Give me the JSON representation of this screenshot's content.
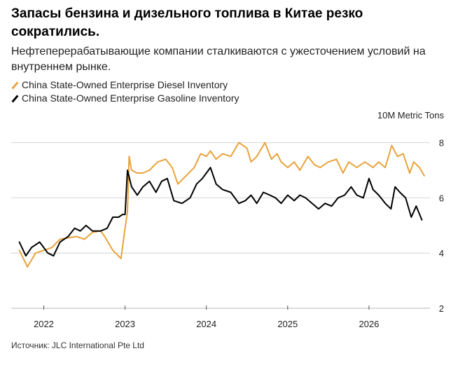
{
  "title": "Запасы бензина и дизельного топлива в Китае резко сократились.",
  "subtitle": "Нефтеперерабатывающие компании сталкиваются с ужесточением условий на внутреннем рынке.",
  "source": "Источник: JLC International Pte Ltd",
  "chart_data": {
    "type": "line",
    "title": "Запасы бензина и дизельного топлива в Китае резко сократились.",
    "unit_label": "10M Metric Tons",
    "ylim": [
      2,
      8.6
    ],
    "yticks": [
      2,
      4,
      6,
      8
    ],
    "xlim": [
      2021.6,
      2026.75
    ],
    "xticks": [
      2022,
      2023,
      2024,
      2025,
      2026
    ],
    "xtick_labels": [
      "2022",
      "2023",
      "2024",
      "2025",
      "2026"
    ],
    "grid": true,
    "legend_position": "top-left",
    "series": [
      {
        "name": "China State-Owned Enterprise Diesel Inventory",
        "color": "#E8A33C",
        "points": [
          [
            2021.7,
            4.1
          ],
          [
            2021.8,
            3.5
          ],
          [
            2021.9,
            4.0
          ],
          [
            2022.0,
            4.1
          ],
          [
            2022.1,
            4.2
          ],
          [
            2022.2,
            4.5
          ],
          [
            2022.3,
            4.55
          ],
          [
            2022.4,
            4.6
          ],
          [
            2022.5,
            4.5
          ],
          [
            2022.6,
            4.75
          ],
          [
            2022.7,
            4.8
          ],
          [
            2022.75,
            4.6
          ],
          [
            2022.85,
            4.1
          ],
          [
            2022.95,
            3.8
          ],
          [
            2023.0,
            4.9
          ],
          [
            2023.03,
            5.5
          ],
          [
            2023.05,
            7.5
          ],
          [
            2023.08,
            7.0
          ],
          [
            2023.15,
            6.9
          ],
          [
            2023.22,
            6.9
          ],
          [
            2023.3,
            7.0
          ],
          [
            2023.4,
            7.3
          ],
          [
            2023.5,
            7.4
          ],
          [
            2023.58,
            7.1
          ],
          [
            2023.65,
            6.5
          ],
          [
            2023.75,
            6.8
          ],
          [
            2023.85,
            7.1
          ],
          [
            2023.93,
            7.6
          ],
          [
            2024.0,
            7.5
          ],
          [
            2024.05,
            7.7
          ],
          [
            2024.12,
            7.4
          ],
          [
            2024.2,
            7.6
          ],
          [
            2024.3,
            7.5
          ],
          [
            2024.4,
            8.0
          ],
          [
            2024.5,
            7.8
          ],
          [
            2024.55,
            7.3
          ],
          [
            2024.62,
            7.5
          ],
          [
            2024.72,
            8.0
          ],
          [
            2024.8,
            7.4
          ],
          [
            2024.87,
            7.6
          ],
          [
            2024.92,
            7.3
          ],
          [
            2025.0,
            7.1
          ],
          [
            2025.08,
            7.3
          ],
          [
            2025.15,
            7.0
          ],
          [
            2025.25,
            7.5
          ],
          [
            2025.33,
            7.2
          ],
          [
            2025.4,
            7.1
          ],
          [
            2025.5,
            7.3
          ],
          [
            2025.6,
            7.4
          ],
          [
            2025.68,
            6.9
          ],
          [
            2025.75,
            7.3
          ],
          [
            2025.85,
            7.1
          ],
          [
            2025.95,
            7.3
          ],
          [
            2026.05,
            7.1
          ],
          [
            2026.12,
            7.3
          ],
          [
            2026.2,
            7.1
          ],
          [
            2026.28,
            7.9
          ],
          [
            2026.35,
            7.5
          ],
          [
            2026.42,
            7.6
          ],
          [
            2026.5,
            6.9
          ],
          [
            2026.55,
            7.3
          ],
          [
            2026.62,
            7.1
          ],
          [
            2026.68,
            6.8
          ]
        ]
      },
      {
        "name": "China State-Owned Enterprise Gasoline Inventory",
        "color": "#000000",
        "points": [
          [
            2021.7,
            4.4
          ],
          [
            2021.78,
            3.9
          ],
          [
            2021.85,
            4.2
          ],
          [
            2021.95,
            4.4
          ],
          [
            2022.05,
            4.0
          ],
          [
            2022.12,
            3.9
          ],
          [
            2022.2,
            4.4
          ],
          [
            2022.3,
            4.6
          ],
          [
            2022.38,
            4.9
          ],
          [
            2022.45,
            4.8
          ],
          [
            2022.52,
            5.0
          ],
          [
            2022.6,
            4.8
          ],
          [
            2022.7,
            4.8
          ],
          [
            2022.78,
            4.9
          ],
          [
            2022.85,
            5.3
          ],
          [
            2022.92,
            5.3
          ],
          [
            2022.97,
            5.4
          ],
          [
            2023.0,
            5.4
          ],
          [
            2023.03,
            7.0
          ],
          [
            2023.08,
            6.4
          ],
          [
            2023.15,
            6.1
          ],
          [
            2023.22,
            6.4
          ],
          [
            2023.3,
            6.6
          ],
          [
            2023.38,
            6.2
          ],
          [
            2023.45,
            6.6
          ],
          [
            2023.52,
            6.7
          ],
          [
            2023.6,
            5.9
          ],
          [
            2023.7,
            5.8
          ],
          [
            2023.8,
            6.0
          ],
          [
            2023.88,
            6.5
          ],
          [
            2023.95,
            6.7
          ],
          [
            2024.0,
            6.9
          ],
          [
            2024.05,
            7.1
          ],
          [
            2024.12,
            6.5
          ],
          [
            2024.2,
            6.3
          ],
          [
            2024.3,
            6.2
          ],
          [
            2024.4,
            5.8
          ],
          [
            2024.48,
            5.9
          ],
          [
            2024.55,
            6.1
          ],
          [
            2024.62,
            5.8
          ],
          [
            2024.7,
            6.2
          ],
          [
            2024.78,
            6.1
          ],
          [
            2024.85,
            6.0
          ],
          [
            2024.92,
            5.8
          ],
          [
            2025.0,
            6.1
          ],
          [
            2025.08,
            5.9
          ],
          [
            2025.15,
            6.1
          ],
          [
            2025.22,
            6.0
          ],
          [
            2025.3,
            5.8
          ],
          [
            2025.38,
            5.6
          ],
          [
            2025.46,
            5.8
          ],
          [
            2025.54,
            5.7
          ],
          [
            2025.62,
            6.0
          ],
          [
            2025.7,
            6.1
          ],
          [
            2025.78,
            6.4
          ],
          [
            2025.85,
            6.1
          ],
          [
            2025.93,
            6.0
          ],
          [
            2026.0,
            6.7
          ],
          [
            2026.05,
            6.3
          ],
          [
            2026.12,
            6.1
          ],
          [
            2026.2,
            5.8
          ],
          [
            2026.27,
            5.6
          ],
          [
            2026.32,
            6.4
          ],
          [
            2026.38,
            6.2
          ],
          [
            2026.45,
            6.0
          ],
          [
            2026.52,
            5.3
          ],
          [
            2026.58,
            5.7
          ],
          [
            2026.65,
            5.2
          ]
        ]
      }
    ]
  }
}
